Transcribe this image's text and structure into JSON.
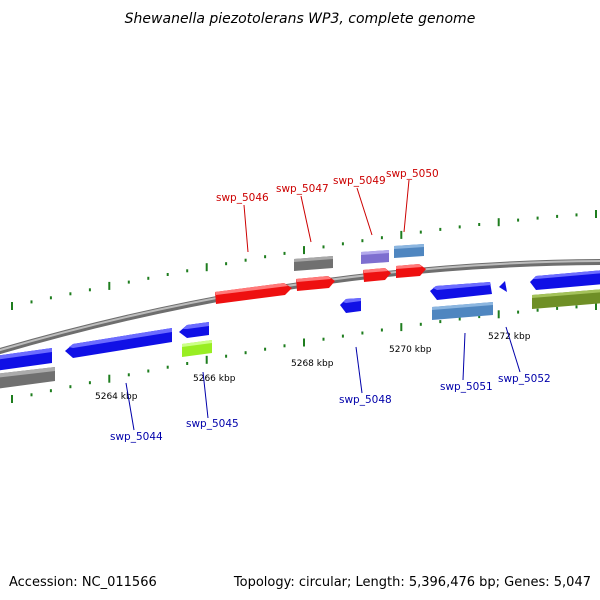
{
  "title": "Shewanella piezotolerans WP3, complete genome",
  "footer": {
    "accession": "Accession: NC_011566",
    "summary": "Topology: circular; Length: 5,396,476 bp; Genes: 5,047"
  },
  "scale": {
    "ticks": [
      "5264 kbp",
      "5266 kbp",
      "5268 kbp",
      "5270 kbp",
      "5272 kbp"
    ]
  },
  "colors": {
    "backbone": "#8a8a8a",
    "tick": "#1e7d1e",
    "label_top": "#cc0000",
    "label_bottom": "#0000aa",
    "blue": "#1010e6",
    "red": "#ee1010",
    "gray": "#707070",
    "purple": "#7e6fd0",
    "steel": "#4f86c0",
    "lime": "#99ee22",
    "olive": "#6f8f26"
  },
  "genes": {
    "top": [
      {
        "label": "swp_5046"
      },
      {
        "label": "swp_5047"
      },
      {
        "label": "swp_5049"
      },
      {
        "label": "swp_5050"
      }
    ],
    "bottom": [
      {
        "label": "swp_5044"
      },
      {
        "label": "swp_5045"
      },
      {
        "label": "swp_5048"
      },
      {
        "label": "swp_5051"
      },
      {
        "label": "swp_5052"
      }
    ]
  }
}
